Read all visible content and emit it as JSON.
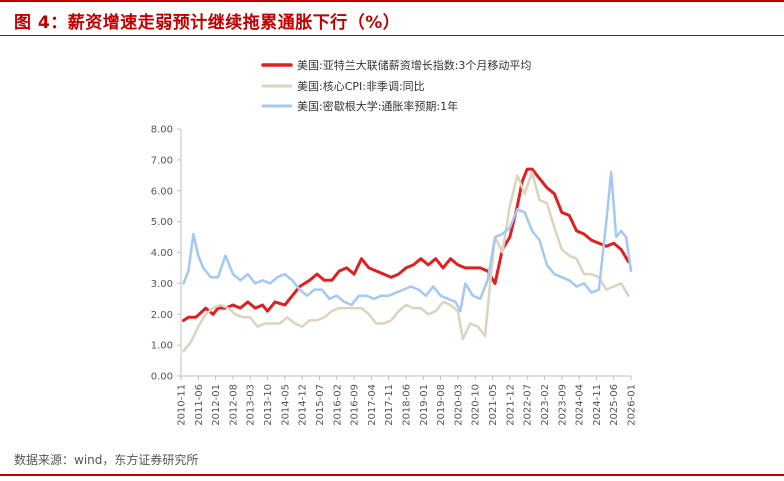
{
  "header": {
    "title": "图 4：薪资增速走弱预计继续拖累通胀下行（%）"
  },
  "footer": {
    "source": "数据来源：wind，东方证券研究所"
  },
  "chart_data": {
    "type": "line",
    "title": "图 4：薪资增速走弱预计继续拖累通胀下行（%）",
    "ylim": [
      0,
      8
    ],
    "yticks": [
      "0.00",
      "1.00",
      "2.00",
      "3.00",
      "4.00",
      "5.00",
      "6.00",
      "7.00",
      "8.00"
    ],
    "xlim": [
      "2010-11",
      "2026-01"
    ],
    "xticks": [
      "2010-11",
      "2011-06",
      "2012-01",
      "2012-08",
      "2013-03",
      "2013-10",
      "2014-05",
      "2014-12",
      "2015-07",
      "2016-02",
      "2016-09",
      "2017-04",
      "2017-11",
      "2018-06",
      "2019-01",
      "2019-08",
      "2020-03",
      "2020-10",
      "2021-05",
      "2021-12",
      "2022-07",
      "2023-02",
      "2023-09",
      "2024-04",
      "2024-11",
      "2025-06",
      "2026-01"
    ],
    "grid": false,
    "legend_position": "top",
    "series": [
      {
        "name": "美国:亚特兰大联储薪资增长指数:3个月移动平均",
        "color": "#e02020",
        "points": [
          [
            "2010-12",
            1.8
          ],
          [
            "2011-02",
            1.9
          ],
          [
            "2011-05",
            1.9
          ],
          [
            "2011-09",
            2.2
          ],
          [
            "2011-12",
            2.0
          ],
          [
            "2012-02",
            2.2
          ],
          [
            "2012-05",
            2.2
          ],
          [
            "2012-08",
            2.3
          ],
          [
            "2012-11",
            2.2
          ],
          [
            "2013-02",
            2.4
          ],
          [
            "2013-05",
            2.2
          ],
          [
            "2013-08",
            2.3
          ],
          [
            "2013-10",
            2.1
          ],
          [
            "2014-01",
            2.4
          ],
          [
            "2014-05",
            2.3
          ],
          [
            "2014-08",
            2.6
          ],
          [
            "2014-11",
            2.9
          ],
          [
            "2015-03",
            3.1
          ],
          [
            "2015-06",
            3.3
          ],
          [
            "2015-09",
            3.1
          ],
          [
            "2015-12",
            3.1
          ],
          [
            "2016-03",
            3.4
          ],
          [
            "2016-06",
            3.5
          ],
          [
            "2016-09",
            3.3
          ],
          [
            "2016-12",
            3.8
          ],
          [
            "2017-03",
            3.5
          ],
          [
            "2017-06",
            3.4
          ],
          [
            "2017-09",
            3.3
          ],
          [
            "2017-12",
            3.2
          ],
          [
            "2018-03",
            3.3
          ],
          [
            "2018-06",
            3.5
          ],
          [
            "2018-09",
            3.6
          ],
          [
            "2018-12",
            3.8
          ],
          [
            "2019-03",
            3.6
          ],
          [
            "2019-06",
            3.8
          ],
          [
            "2019-09",
            3.5
          ],
          [
            "2019-12",
            3.8
          ],
          [
            "2020-03",
            3.6
          ],
          [
            "2020-06",
            3.5
          ],
          [
            "2020-09",
            3.5
          ],
          [
            "2020-12",
            3.5
          ],
          [
            "2021-03",
            3.4
          ],
          [
            "2021-06",
            3.0
          ],
          [
            "2021-09",
            4.1
          ],
          [
            "2021-12",
            4.5
          ],
          [
            "2022-03",
            5.5
          ],
          [
            "2022-05",
            6.3
          ],
          [
            "2022-07",
            6.7
          ],
          [
            "2022-09",
            6.7
          ],
          [
            "2022-12",
            6.4
          ],
          [
            "2023-03",
            6.1
          ],
          [
            "2023-06",
            5.9
          ],
          [
            "2023-09",
            5.3
          ],
          [
            "2023-12",
            5.2
          ],
          [
            "2024-03",
            4.7
          ],
          [
            "2024-06",
            4.6
          ],
          [
            "2024-09",
            4.4
          ],
          [
            "2024-12",
            4.3
          ],
          [
            "2025-03",
            4.2
          ],
          [
            "2025-06",
            4.3
          ],
          [
            "2025-09",
            4.1
          ],
          [
            "2025-12",
            3.7
          ]
        ]
      },
      {
        "name": "美国:核心CPI:非季调:同比",
        "color": "#ddd2bd",
        "points": [
          [
            "2010-12",
            0.8
          ],
          [
            "2011-03",
            1.1
          ],
          [
            "2011-06",
            1.6
          ],
          [
            "2011-09",
            2.0
          ],
          [
            "2011-12",
            2.2
          ],
          [
            "2012-03",
            2.3
          ],
          [
            "2012-06",
            2.2
          ],
          [
            "2012-09",
            2.0
          ],
          [
            "2012-12",
            1.9
          ],
          [
            "2013-03",
            1.9
          ],
          [
            "2013-06",
            1.6
          ],
          [
            "2013-09",
            1.7
          ],
          [
            "2013-12",
            1.7
          ],
          [
            "2014-03",
            1.7
          ],
          [
            "2014-06",
            1.9
          ],
          [
            "2014-09",
            1.7
          ],
          [
            "2014-12",
            1.6
          ],
          [
            "2015-03",
            1.8
          ],
          [
            "2015-06",
            1.8
          ],
          [
            "2015-09",
            1.9
          ],
          [
            "2015-12",
            2.1
          ],
          [
            "2016-03",
            2.2
          ],
          [
            "2016-06",
            2.2
          ],
          [
            "2016-09",
            2.2
          ],
          [
            "2016-12",
            2.2
          ],
          [
            "2017-03",
            2.0
          ],
          [
            "2017-06",
            1.7
          ],
          [
            "2017-09",
            1.7
          ],
          [
            "2017-12",
            1.8
          ],
          [
            "2018-03",
            2.1
          ],
          [
            "2018-06",
            2.3
          ],
          [
            "2018-09",
            2.2
          ],
          [
            "2018-12",
            2.2
          ],
          [
            "2019-03",
            2.0
          ],
          [
            "2019-06",
            2.1
          ],
          [
            "2019-09",
            2.4
          ],
          [
            "2019-12",
            2.3
          ],
          [
            "2020-03",
            2.1
          ],
          [
            "2020-05",
            1.2
          ],
          [
            "2020-08",
            1.7
          ],
          [
            "2020-11",
            1.6
          ],
          [
            "2021-02",
            1.3
          ],
          [
            "2021-04",
            3.0
          ],
          [
            "2021-06",
            4.5
          ],
          [
            "2021-09",
            4.0
          ],
          [
            "2021-12",
            5.5
          ],
          [
            "2022-03",
            6.5
          ],
          [
            "2022-06",
            5.9
          ],
          [
            "2022-09",
            6.6
          ],
          [
            "2022-12",
            5.7
          ],
          [
            "2023-03",
            5.6
          ],
          [
            "2023-06",
            4.8
          ],
          [
            "2023-09",
            4.1
          ],
          [
            "2023-12",
            3.9
          ],
          [
            "2024-03",
            3.8
          ],
          [
            "2024-06",
            3.3
          ],
          [
            "2024-09",
            3.3
          ],
          [
            "2024-12",
            3.2
          ],
          [
            "2025-03",
            2.8
          ],
          [
            "2025-06",
            2.9
          ],
          [
            "2025-09",
            3.0
          ],
          [
            "2025-12",
            2.6
          ]
        ]
      },
      {
        "name": "美国:密歇根大学:通胀率预期:1年",
        "color": "#a4c8f2",
        "points": [
          [
            "2010-12",
            3.0
          ],
          [
            "2011-02",
            3.4
          ],
          [
            "2011-04",
            4.6
          ],
          [
            "2011-06",
            3.9
          ],
          [
            "2011-08",
            3.5
          ],
          [
            "2011-11",
            3.2
          ],
          [
            "2012-02",
            3.2
          ],
          [
            "2012-05",
            3.9
          ],
          [
            "2012-08",
            3.3
          ],
          [
            "2012-11",
            3.1
          ],
          [
            "2013-02",
            3.3
          ],
          [
            "2013-05",
            3.0
          ],
          [
            "2013-08",
            3.1
          ],
          [
            "2013-11",
            3.0
          ],
          [
            "2014-02",
            3.2
          ],
          [
            "2014-05",
            3.3
          ],
          [
            "2014-08",
            3.1
          ],
          [
            "2014-11",
            2.8
          ],
          [
            "2015-02",
            2.6
          ],
          [
            "2015-05",
            2.8
          ],
          [
            "2015-08",
            2.8
          ],
          [
            "2015-11",
            2.5
          ],
          [
            "2016-02",
            2.6
          ],
          [
            "2016-05",
            2.4
          ],
          [
            "2016-08",
            2.3
          ],
          [
            "2016-11",
            2.6
          ],
          [
            "2017-02",
            2.6
          ],
          [
            "2017-05",
            2.5
          ],
          [
            "2017-08",
            2.6
          ],
          [
            "2017-11",
            2.6
          ],
          [
            "2018-02",
            2.7
          ],
          [
            "2018-05",
            2.8
          ],
          [
            "2018-08",
            2.9
          ],
          [
            "2018-11",
            2.8
          ],
          [
            "2019-02",
            2.6
          ],
          [
            "2019-05",
            2.9
          ],
          [
            "2019-08",
            2.6
          ],
          [
            "2019-11",
            2.5
          ],
          [
            "2020-02",
            2.4
          ],
          [
            "2020-04",
            2.1
          ],
          [
            "2020-06",
            3.0
          ],
          [
            "2020-09",
            2.6
          ],
          [
            "2020-12",
            2.5
          ],
          [
            "2021-03",
            3.1
          ],
          [
            "2021-06",
            4.5
          ],
          [
            "2021-09",
            4.6
          ],
          [
            "2021-12",
            4.8
          ],
          [
            "2022-03",
            5.4
          ],
          [
            "2022-06",
            5.3
          ],
          [
            "2022-09",
            4.7
          ],
          [
            "2022-12",
            4.4
          ],
          [
            "2023-03",
            3.6
          ],
          [
            "2023-06",
            3.3
          ],
          [
            "2023-09",
            3.2
          ],
          [
            "2023-12",
            3.1
          ],
          [
            "2024-03",
            2.9
          ],
          [
            "2024-06",
            3.0
          ],
          [
            "2024-09",
            2.7
          ],
          [
            "2024-12",
            2.8
          ],
          [
            "2025-03",
            5.0
          ],
          [
            "2025-05",
            6.6
          ],
          [
            "2025-07",
            4.5
          ],
          [
            "2025-09",
            4.7
          ],
          [
            "2025-11",
            4.5
          ],
          [
            "2026-01",
            3.4
          ]
        ]
      }
    ]
  }
}
